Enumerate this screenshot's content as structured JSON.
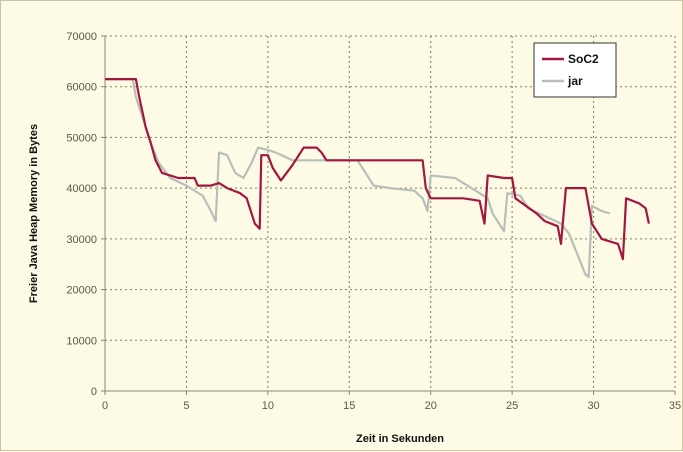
{
  "chart_data": {
    "type": "line",
    "xlabel": "Zeit in Sekunden",
    "ylabel": "Freier Java Heap Memory in Bytes",
    "xlim": [
      0,
      35
    ],
    "ylim": [
      0,
      70000
    ],
    "xticks": [
      0,
      5,
      10,
      15,
      20,
      25,
      30,
      35
    ],
    "yticks": [
      0,
      10000,
      20000,
      30000,
      40000,
      50000,
      60000,
      70000
    ],
    "grid": true,
    "legend_position": "top-right",
    "series": [
      {
        "name": "SoC2",
        "color": "#a3163f",
        "points": [
          [
            0,
            61500
          ],
          [
            1.9,
            61500
          ],
          [
            2.1,
            58000
          ],
          [
            2.3,
            55000
          ],
          [
            2.5,
            52000
          ],
          [
            2.8,
            49000
          ],
          [
            3.1,
            45500
          ],
          [
            3.5,
            43000
          ],
          [
            4.5,
            42000
          ],
          [
            5.5,
            42000
          ],
          [
            5.7,
            40500
          ],
          [
            6.5,
            40500
          ],
          [
            7.0,
            41000
          ],
          [
            7.5,
            40000
          ],
          [
            8.3,
            39000
          ],
          [
            8.7,
            38000
          ],
          [
            9.2,
            33000
          ],
          [
            9.5,
            32000
          ],
          [
            9.6,
            46500
          ],
          [
            10.0,
            46500
          ],
          [
            10.3,
            44000
          ],
          [
            10.8,
            41500
          ],
          [
            11.5,
            44500
          ],
          [
            12.2,
            48000
          ],
          [
            13.0,
            48000
          ],
          [
            13.3,
            47000
          ],
          [
            13.6,
            45500
          ],
          [
            15.5,
            45500
          ],
          [
            19.5,
            45500
          ],
          [
            19.7,
            40000
          ],
          [
            20.0,
            38000
          ],
          [
            22.0,
            38000
          ],
          [
            23.0,
            37500
          ],
          [
            23.3,
            33000
          ],
          [
            23.5,
            42500
          ],
          [
            24.5,
            42000
          ],
          [
            25.0,
            42000
          ],
          [
            25.2,
            38000
          ],
          [
            26.5,
            35000
          ],
          [
            27.0,
            33500
          ],
          [
            27.8,
            32500
          ],
          [
            28.0,
            29000
          ],
          [
            28.3,
            40000
          ],
          [
            29.5,
            40000
          ],
          [
            29.9,
            33000
          ],
          [
            30.5,
            30000
          ],
          [
            31.5,
            29000
          ],
          [
            31.8,
            26000
          ],
          [
            32.0,
            38000
          ],
          [
            32.8,
            37000
          ],
          [
            33.2,
            36000
          ],
          [
            33.4,
            33000
          ]
        ]
      },
      {
        "name": "jar",
        "color": "#b7bfba",
        "points": [
          [
            0,
            61500
          ],
          [
            1.7,
            61500
          ],
          [
            1.9,
            58000
          ],
          [
            2.2,
            55000
          ],
          [
            2.5,
            52000
          ],
          [
            2.8,
            49000
          ],
          [
            3.3,
            45000
          ],
          [
            4.0,
            42000
          ],
          [
            5.0,
            40500
          ],
          [
            6.0,
            38500
          ],
          [
            6.5,
            35500
          ],
          [
            6.8,
            33500
          ],
          [
            7.0,
            47000
          ],
          [
            7.5,
            46500
          ],
          [
            8.0,
            43000
          ],
          [
            8.5,
            42000
          ],
          [
            9.0,
            45000
          ],
          [
            9.4,
            48000
          ],
          [
            10.0,
            47500
          ],
          [
            10.5,
            47000
          ],
          [
            11.5,
            45500
          ],
          [
            12.0,
            45500
          ],
          [
            15.5,
            45500
          ],
          [
            16.0,
            43000
          ],
          [
            16.5,
            40500
          ],
          [
            17.5,
            40000
          ],
          [
            19.0,
            39500
          ],
          [
            19.5,
            38000
          ],
          [
            19.8,
            35500
          ],
          [
            20.0,
            42500
          ],
          [
            21.5,
            42000
          ],
          [
            22.5,
            40000
          ],
          [
            23.5,
            38000
          ],
          [
            23.8,
            35000
          ],
          [
            24.2,
            33000
          ],
          [
            24.5,
            31500
          ],
          [
            24.7,
            39000
          ],
          [
            25.5,
            38500
          ],
          [
            26.0,
            36000
          ],
          [
            27.0,
            34500
          ],
          [
            28.0,
            33000
          ],
          [
            28.5,
            31000
          ],
          [
            29.0,
            27000
          ],
          [
            29.5,
            23000
          ],
          [
            29.7,
            22500
          ],
          [
            29.9,
            36500
          ],
          [
            30.5,
            35500
          ],
          [
            31.0,
            35000
          ]
        ]
      }
    ]
  }
}
